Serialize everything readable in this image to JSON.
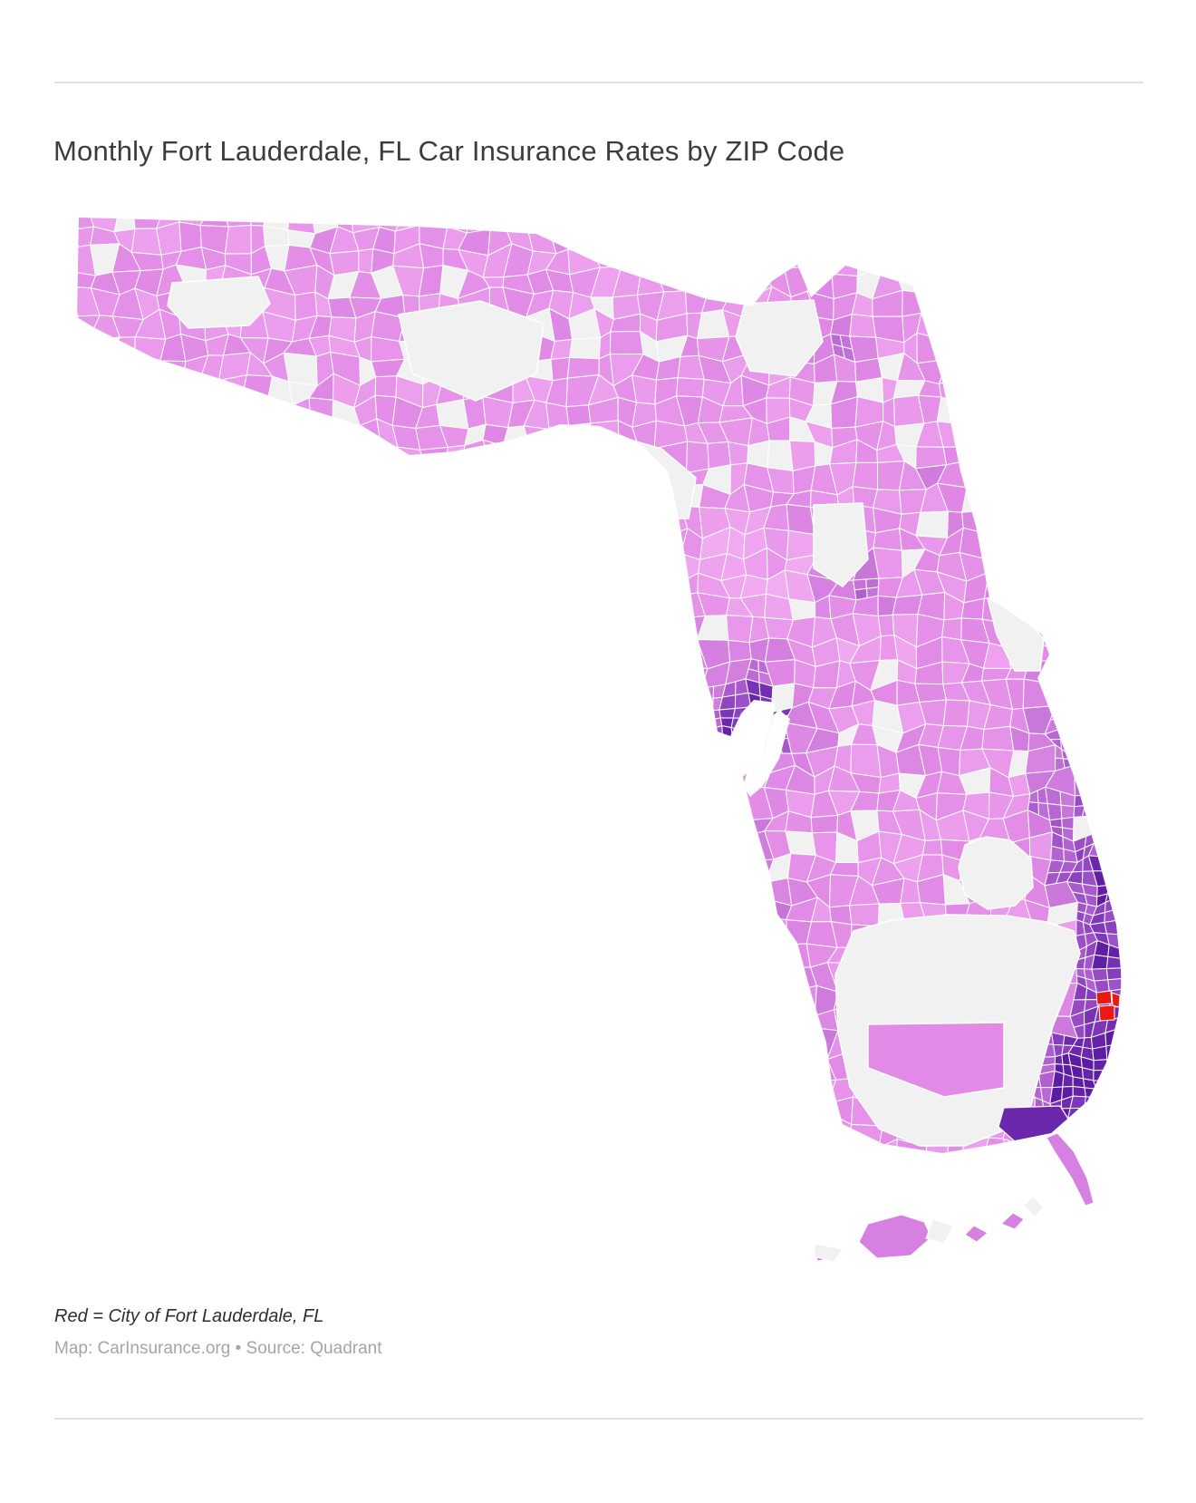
{
  "article": {
    "title": "Monthly Fort Lauderdale, FL Car Insurance Rates by ZIP Code",
    "note": "Red = City of Fort Lauderdale, FL",
    "credit": "Map: CarInsurance.org • Source: Quadrant"
  },
  "map": {
    "type": "choropleth",
    "area": "Florida",
    "unit": "ZIP code",
    "highlight": {
      "meaning": "City of Fort Lauderdale, FL",
      "color": "#ee1810"
    },
    "no_data_color": "#f2f1f2",
    "water_color": "#ffffff",
    "border_color": "#ffffff",
    "scale_stops": [
      [
        0.0,
        "#fbc7f6"
      ],
      [
        0.22,
        "#efa4ef"
      ],
      [
        0.4,
        "#e18ae6"
      ],
      [
        0.55,
        "#c674d9"
      ],
      [
        0.7,
        "#a557cb"
      ],
      [
        0.84,
        "#8139ba"
      ],
      [
        1.0,
        "#5c1ba3"
      ]
    ]
  }
}
